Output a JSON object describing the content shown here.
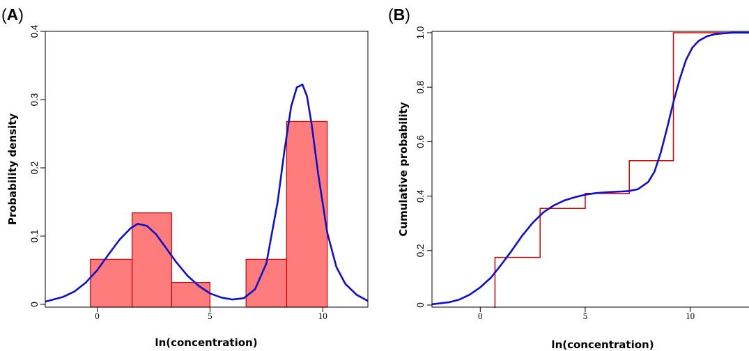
{
  "chart_data": [
    {
      "panel": "(A)",
      "panel_letter": "A",
      "type": "bar",
      "xlabel": "ln(concentration)",
      "ylabel": "Probability density",
      "xlim": [
        -2.3,
        12
      ],
      "ylim": [
        0,
        0.4
      ],
      "x_ticks": [
        "0",
        "5",
        "10"
      ],
      "y_ticks": [
        "0",
        "0.1",
        "0.2",
        "0.3",
        "0.4"
      ],
      "grid": false,
      "series": [
        {
          "kind": "histogram",
          "color": "#ff7c7c",
          "edge_color": "#d40000",
          "bins": [
            {
              "start": -0.3,
              "end": 1.55,
              "value": 0.066
            },
            {
              "start": 1.55,
              "end": 3.3,
              "value": 0.134
            },
            {
              "start": 3.3,
              "end": 5.0,
              "value": 0.032
            },
            {
              "start": 5.0,
              "end": 6.6,
              "value": 0.0
            },
            {
              "start": 6.6,
              "end": 8.4,
              "value": 0.066
            },
            {
              "start": 8.4,
              "end": 10.2,
              "value": 0.268
            }
          ]
        },
        {
          "kind": "density-curve",
          "color": "#1010cc",
          "x": [
            -2.3,
            -1.5,
            -1.0,
            -0.5,
            0.0,
            0.5,
            1.0,
            1.5,
            1.8,
            2.2,
            2.6,
            3.0,
            3.5,
            4.0,
            4.5,
            5.0,
            5.5,
            6.0,
            6.5,
            7.0,
            7.5,
            8.0,
            8.3,
            8.6,
            8.85,
            9.1,
            9.3,
            9.5,
            9.8,
            10.2,
            10.6,
            11.0,
            11.5,
            12.0
          ],
          "y": [
            0.004,
            0.011,
            0.019,
            0.032,
            0.05,
            0.073,
            0.095,
            0.112,
            0.118,
            0.115,
            0.103,
            0.085,
            0.062,
            0.042,
            0.027,
            0.016,
            0.01,
            0.007,
            0.009,
            0.022,
            0.06,
            0.15,
            0.225,
            0.29,
            0.318,
            0.322,
            0.305,
            0.265,
            0.19,
            0.105,
            0.055,
            0.03,
            0.014,
            0.005
          ]
        }
      ]
    },
    {
      "panel": "(B)",
      "panel_letter": "B",
      "type": "line",
      "xlabel": "ln(concentration)",
      "ylabel": "Cumulative probability",
      "xlim": [
        -2.3,
        12.8
      ],
      "ylim": [
        0,
        1.0
      ],
      "x_ticks": [
        "0",
        "5",
        "10"
      ],
      "y_ticks": [
        "0",
        "0.2",
        "0.4",
        "0.6",
        "0.8",
        "1.0"
      ],
      "grid": false,
      "series": [
        {
          "kind": "ecdf-step",
          "color": "#d40000",
          "x": [
            0.7,
            2.85,
            5.0,
            7.1,
            9.2
          ],
          "y": [
            0.175,
            0.355,
            0.41,
            0.53,
            1.0
          ]
        },
        {
          "kind": "cdf-curve",
          "color": "#1010cc",
          "x": [
            -2.3,
            -1.5,
            -1.0,
            -0.5,
            0.0,
            0.5,
            1.0,
            1.5,
            2.0,
            2.5,
            3.0,
            3.5,
            4.0,
            4.5,
            5.0,
            5.5,
            6.0,
            6.5,
            7.0,
            7.5,
            8.0,
            8.3,
            8.6,
            8.9,
            9.2,
            9.5,
            9.8,
            10.1,
            10.4,
            10.8,
            11.2,
            11.6,
            12.0,
            12.8
          ],
          "y": [
            0.003,
            0.01,
            0.02,
            0.038,
            0.065,
            0.1,
            0.148,
            0.2,
            0.255,
            0.302,
            0.34,
            0.366,
            0.384,
            0.396,
            0.405,
            0.411,
            0.414,
            0.416,
            0.418,
            0.425,
            0.452,
            0.49,
            0.56,
            0.65,
            0.745,
            0.83,
            0.9,
            0.945,
            0.97,
            0.987,
            0.995,
            0.998,
            1.0,
            1.0
          ]
        }
      ]
    }
  ]
}
